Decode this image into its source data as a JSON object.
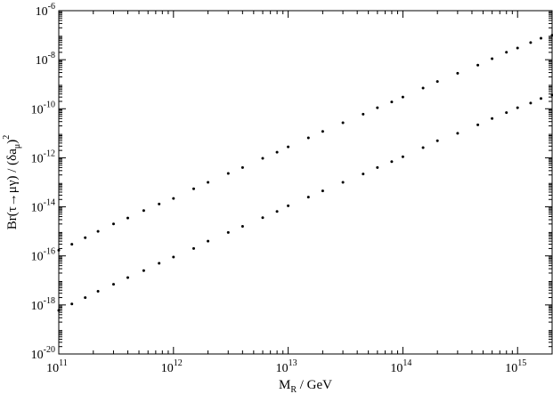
{
  "chart_data": {
    "type": "scatter",
    "title": "",
    "xlabel": {
      "main": "M",
      "sub": "R",
      "rest": " / GeV"
    },
    "ylabel": {
      "part1": "Br(τ→μγ) / (δa",
      "sub": "μ",
      "part2": ")",
      "sup": "2"
    },
    "xscale": "log",
    "yscale": "log",
    "xlim": [
      100000000000.0,
      2000000000000000.0
    ],
    "ylim": [
      1e-20,
      1e-06
    ],
    "xticks": [
      {
        "value": 100000000000.0,
        "base": "10",
        "exp": "11"
      },
      {
        "value": 1000000000000.0,
        "base": "10",
        "exp": "12"
      },
      {
        "value": 10000000000000.0,
        "base": "10",
        "exp": "13"
      },
      {
        "value": 100000000000000.0,
        "base": "10",
        "exp": "14"
      },
      {
        "value": 1000000000000000.0,
        "base": "10",
        "exp": "15"
      }
    ],
    "yticks": [
      {
        "value": 1e-20,
        "base": "10",
        "exp": "-20"
      },
      {
        "value": 1e-18,
        "base": "10",
        "exp": "-18"
      },
      {
        "value": 1e-16,
        "base": "10",
        "exp": "-16"
      },
      {
        "value": 1e-14,
        "base": "10",
        "exp": "-14"
      },
      {
        "value": 1e-12,
        "base": "10",
        "exp": "-12"
      },
      {
        "value": 1e-10,
        "base": "10",
        "exp": "-10"
      },
      {
        "value": 1e-08,
        "base": "10",
        "exp": "-8"
      },
      {
        "value": 1e-06,
        "base": "10",
        "exp": "-6"
      }
    ],
    "grid": false,
    "legend": "none",
    "marker_color": "#000000",
    "series": [
      {
        "x": [
          100000000000.0,
          130000000000.0,
          170000000000.0,
          220000000000.0,
          300000000000.0,
          400000000000.0,
          550000000000.0,
          750000000000.0,
          1000000000000.0,
          1500000000000.0,
          2000000000000.0,
          3000000000000.0,
          4000000000000.0,
          6000000000000.0,
          8000000000000.0,
          10000000000000.0,
          15000000000000.0,
          20000000000000.0,
          30000000000000.0,
          45000000000000.0,
          60000000000000.0,
          80000000000000.0,
          100000000000000.0,
          150000000000000.0,
          200000000000000.0,
          300000000000000.0,
          450000000000000.0,
          600000000000000.0,
          800000000000000.0,
          1000000000000000.0,
          1300000000000000.0,
          1600000000000000.0,
          2000000000000000.0
        ],
        "y": [
          1.7e-16,
          3e-16,
          5.5e-16,
          1e-15,
          2e-15,
          3.5e-15,
          7e-15,
          1.3e-14,
          2.2e-14,
          5.5e-14,
          1e-13,
          2.3e-13,
          4e-13,
          9.5e-13,
          1.7e-12,
          2.8e-12,
          6.5e-12,
          1.2e-11,
          2.7e-11,
          6e-11,
          1.1e-10,
          1.9e-10,
          3e-10,
          7e-10,
          1.3e-09,
          2.8e-09,
          6e-09,
          1.1e-08,
          2e-08,
          3e-08,
          5e-08,
          7.5e-08,
          1e-07
        ]
      },
      {
        "x": [
          100000000000.0,
          130000000000.0,
          170000000000.0,
          220000000000.0,
          300000000000.0,
          400000000000.0,
          550000000000.0,
          750000000000.0,
          1000000000000.0,
          1500000000000.0,
          2000000000000.0,
          3000000000000.0,
          4000000000000.0,
          6000000000000.0,
          8000000000000.0,
          10000000000000.0,
          15000000000000.0,
          20000000000000.0,
          30000000000000.0,
          45000000000000.0,
          60000000000000.0,
          80000000000000.0,
          100000000000000.0,
          150000000000000.0,
          200000000000000.0,
          300000000000000.0,
          450000000000000.0,
          600000000000000.0,
          800000000000000.0,
          1000000000000000.0,
          1300000000000000.0,
          1600000000000000.0,
          2000000000000000.0
        ],
        "y": [
          6e-19,
          1.1e-18,
          2e-18,
          3.6e-18,
          7e-18,
          1.3e-17,
          2.5e-17,
          5e-17,
          9e-17,
          2e-16,
          4e-16,
          9e-16,
          1.6e-15,
          3.6e-15,
          6.5e-15,
          1.1e-14,
          2.5e-14,
          4.5e-14,
          1e-13,
          2.2e-13,
          4e-13,
          7e-13,
          1.1e-12,
          2.6e-12,
          5e-12,
          1e-11,
          2.2e-11,
          4e-11,
          7e-11,
          1.1e-10,
          1.7e-10,
          2.6e-10,
          3.6e-10
        ]
      }
    ]
  }
}
